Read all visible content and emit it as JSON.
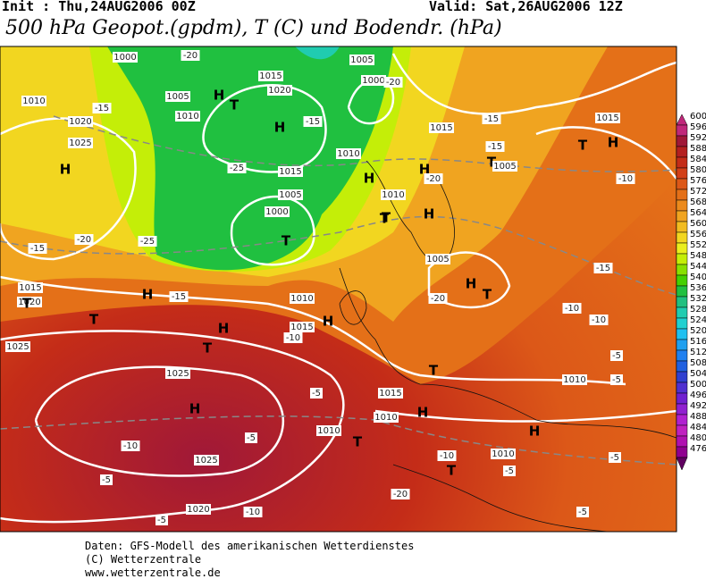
{
  "header": {
    "init": "Init : Thu,24AUG2006 00Z",
    "valid": "Valid: Sat,26AUG2006 12Z",
    "title": "500 hPa Geopot.(gpdm), T (C) und Bodendr. (hPa)"
  },
  "colorbar": {
    "levels": [
      600,
      596,
      592,
      588,
      584,
      580,
      576,
      572,
      568,
      564,
      560,
      556,
      552,
      548,
      544,
      540,
      536,
      532,
      528,
      524,
      520,
      516,
      512,
      508,
      504,
      500,
      496,
      492,
      488,
      484,
      480,
      476
    ],
    "colors": [
      "#c0287a",
      "#a01838",
      "#b42020",
      "#c42c18",
      "#d24018",
      "#dc5818",
      "#e47018",
      "#ec8a1c",
      "#f0a420",
      "#f2bc20",
      "#f2d620",
      "#eaee1e",
      "#c4ee08",
      "#88e000",
      "#44d000",
      "#20c040",
      "#20c080",
      "#20ccb0",
      "#20d0d0",
      "#20c0f0",
      "#20a0f0",
      "#2080f0",
      "#2060e0",
      "#3040d0",
      "#5030d0",
      "#7020d0",
      "#9020d0",
      "#b020d0",
      "#c020c0",
      "#b010b0",
      "#900090",
      "#600060"
    ]
  },
  "map": {
    "labels": [
      "1000",
      "-20",
      "1005",
      "H",
      "T",
      "1020",
      "1005",
      "1000",
      "-20",
      "H",
      "1010",
      "H",
      "1015",
      "1015",
      "-15",
      "1020",
      "1025",
      "H",
      "-15",
      "1010",
      "-25",
      "1015",
      "T",
      "H",
      "H",
      "T",
      "1005",
      "-20",
      "-15",
      "1010",
      "-15",
      "T",
      "H",
      "-10",
      "1015",
      "-20",
      "1010",
      "-15",
      "-25",
      "1000",
      "T",
      "1005",
      "T",
      "T",
      "H",
      "-15",
      "1015",
      "H",
      "T",
      "1020",
      "1010",
      "H",
      "1025",
      "T",
      "-10",
      "1015",
      "H",
      "H",
      "-5",
      "T",
      "1010",
      "1025",
      "-5",
      "1020",
      "-10",
      "-5",
      "-5",
      "T",
      "1010",
      "-10",
      "-5",
      "H",
      "-20",
      "1025",
      "H",
      "T",
      "T",
      "1015",
      "1010",
      "-5",
      "-15",
      "-10",
      "-5",
      "-5",
      "1010",
      "-5",
      "-10",
      "-20",
      "1005",
      "-10"
    ]
  },
  "footer": {
    "source": "Daten: GFS-Modell des amerikanischen Wetterdienstes",
    "copyright": "(C) Wetterzentrale",
    "url": "www.wetterzentrale.de"
  }
}
